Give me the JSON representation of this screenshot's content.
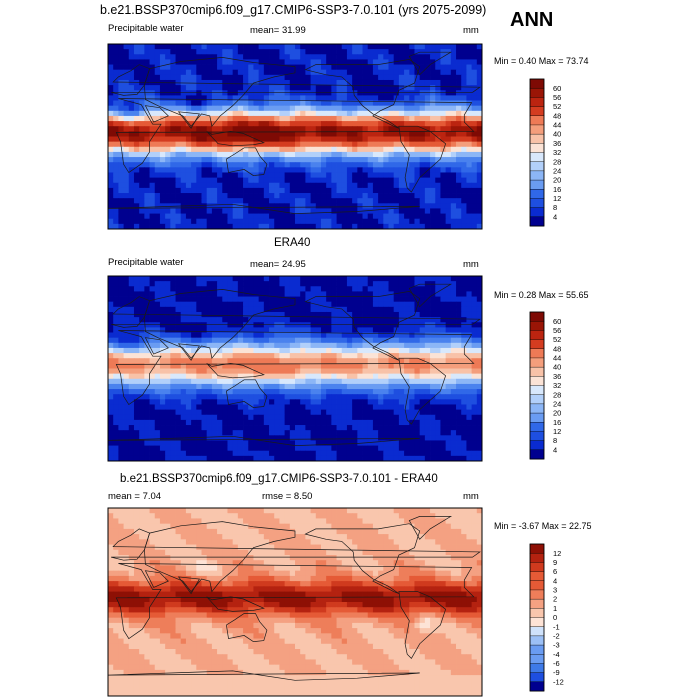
{
  "page": {
    "main_title": "b.e21.BSSP370cmip6.f09_g17.CMIP6-SSP3-7.0.101 (yrs 2075-2099)",
    "season": "ANN"
  },
  "palettes": {
    "abs": [
      "#00008f",
      "#0a2bd0",
      "#1e4fe0",
      "#3068e8",
      "#4a82ee",
      "#6a9cf2",
      "#8cb6f6",
      "#b2d0fa",
      "#d8e8fc",
      "#fbe3d6",
      "#f8c2a8",
      "#f49e7c",
      "#ee7a56",
      "#e55a36",
      "#d43c20",
      "#bb2410",
      "#9a1506",
      "#7e0a04"
    ],
    "diff": [
      "#00008f",
      "#1e4fe0",
      "#3e7ae8",
      "#6a9cf2",
      "#9cc0f6",
      "#cfe2fb",
      "#fde3d6",
      "#f9c6ad",
      "#f4a182",
      "#ee7e5a",
      "#e55a36",
      "#d03a1e",
      "#b42210",
      "#8e1005"
    ]
  },
  "chart_data": [
    {
      "type": "heatmap",
      "title": "b.e21.BSSP370cmip6.f09_g17.CMIP6-SSP3-7.0.101 (yrs 2075-2099)",
      "left_label": "Precipitable water",
      "center_label": "mean=  31.99",
      "right_label": "mm",
      "minmax_label": "Min =   0.40 Max =  73.74",
      "mean": 31.99,
      "min": 0.4,
      "max": 73.74,
      "colorbar_levels": [
        "60",
        "56",
        "52",
        "48",
        "44",
        "40",
        "36",
        "32",
        "28",
        "24",
        "20",
        "16",
        "12",
        "8",
        "4"
      ],
      "palette": "abs",
      "intensity": 1.0
    },
    {
      "type": "heatmap",
      "title": "ERA40",
      "left_label": "Precipitable water",
      "center_label": "mean=  24.95",
      "right_label": "mm",
      "minmax_label": "Min =   0.28 Max =  55.65",
      "mean": 24.95,
      "min": 0.28,
      "max": 55.65,
      "colorbar_levels": [
        "60",
        "56",
        "52",
        "48",
        "44",
        "40",
        "36",
        "32",
        "28",
        "24",
        "20",
        "16",
        "12",
        "8",
        "4"
      ],
      "palette": "abs",
      "intensity": 0.72
    },
    {
      "type": "heatmap",
      "title": "b.e21.BSSP370cmip6.f09_g17.CMIP6-SSP3-7.0.101 - ERA40",
      "left_label": "mean =   7.04",
      "center_label": "rmse =   8.50",
      "right_label": "mm",
      "minmax_label": "Min =  -3.67 Max =  22.75",
      "mean": 7.04,
      "rmse": 8.5,
      "min": -3.67,
      "max": 22.75,
      "colorbar_levels": [
        "12",
        "9",
        "6",
        "4",
        "3",
        "2",
        "1",
        "0",
        "-1",
        "-2",
        "-3",
        "-4",
        "-6",
        "-9",
        "-12"
      ],
      "palette": "diff",
      "intensity": 1.0
    }
  ]
}
